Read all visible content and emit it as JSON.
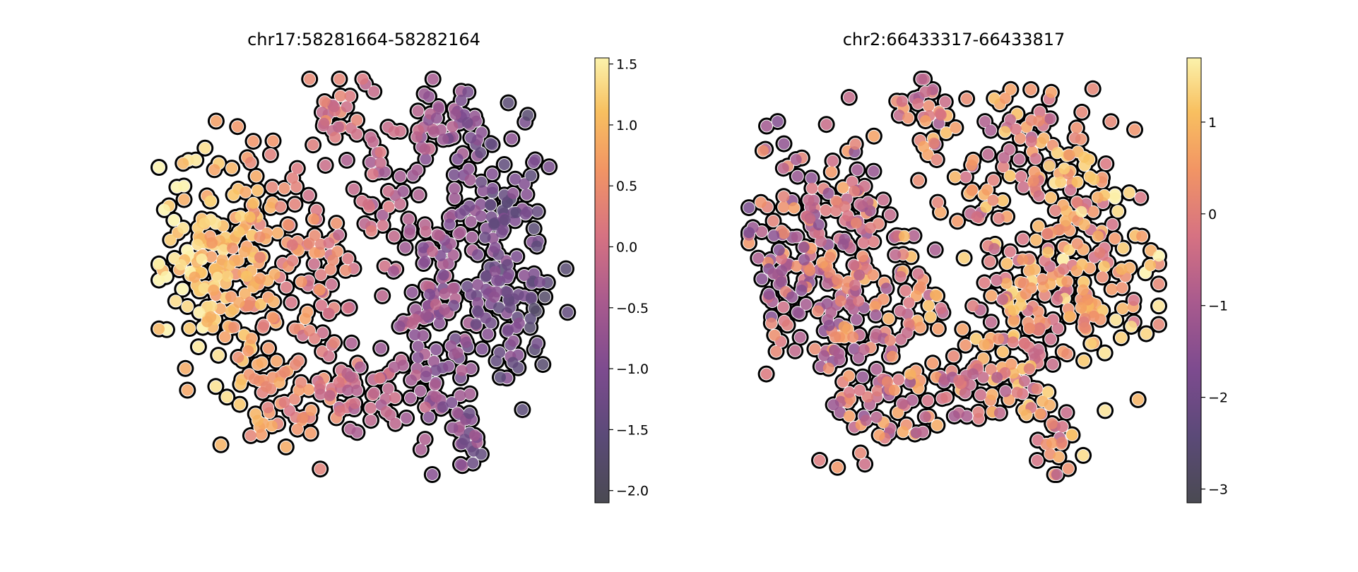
{
  "chart_data": [
    {
      "type": "scatter",
      "title": "chr17:58281664-58282164",
      "xlabel": "",
      "ylabel": "",
      "axes_visible": false,
      "colormap": "inferno",
      "color_range": [
        -2.1,
        1.55
      ],
      "colorbar_ticks": [
        {
          "value": 1.5,
          "label": "1.5"
        },
        {
          "value": 1.0,
          "label": "1.0"
        },
        {
          "value": 0.5,
          "label": "0.5"
        },
        {
          "value": 0.0,
          "label": "0.0"
        },
        {
          "value": -0.5,
          "label": "−0.5"
        },
        {
          "value": -1.0,
          "label": "−1.0"
        },
        {
          "value": -1.5,
          "label": "−1.5"
        },
        {
          "value": -2.0,
          "label": "−2.0"
        }
      ],
      "point_count": 700,
      "pattern": "high values (yellow) on the left lobe, low values (purple) on the right lobe"
    },
    {
      "type": "scatter",
      "title": "chr2:66433317-66433817",
      "xlabel": "",
      "ylabel": "",
      "axes_visible": false,
      "colormap": "inferno",
      "color_range": [
        -3.15,
        1.7
      ],
      "colorbar_ticks": [
        {
          "value": 1,
          "label": "1"
        },
        {
          "value": 0,
          "label": "0"
        },
        {
          "value": -1,
          "label": "−1"
        },
        {
          "value": -2,
          "label": "−2"
        },
        {
          "value": -3,
          "label": "−3"
        }
      ],
      "point_count": 700,
      "pattern": "mixed orange/pink values across the embedding, higher (yellow) on the right lobe"
    }
  ]
}
